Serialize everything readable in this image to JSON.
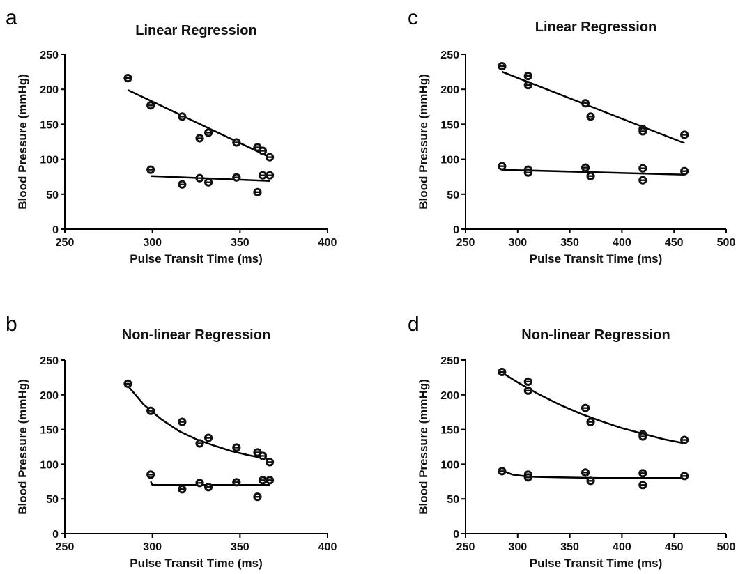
{
  "chart_data": [
    {
      "panel": "a",
      "type": "scatter",
      "title": "Linear Regression",
      "xlabel": "Pulse Transit Time (ms)",
      "ylabel": "Blood Pressure (mmHg)",
      "xlim": [
        250,
        400
      ],
      "ylim": [
        0,
        250
      ],
      "xticks": [
        250,
        300,
        350,
        400
      ],
      "yticks": [
        0,
        50,
        100,
        150,
        200,
        250
      ],
      "fit_type": "linear",
      "series": [
        {
          "points": [
            [
              286,
              216
            ],
            [
              299,
              177
            ],
            [
              317,
              161
            ],
            [
              327,
              130
            ],
            [
              332,
              138
            ],
            [
              348,
              124
            ],
            [
              360,
              117
            ],
            [
              363,
              112
            ],
            [
              367,
              103
            ]
          ],
          "fit": [
            [
              286,
              199
            ],
            [
              367,
              103
            ]
          ]
        },
        {
          "points": [
            [
              299,
              85
            ],
            [
              317,
              64
            ],
            [
              327,
              73
            ],
            [
              332,
              67
            ],
            [
              348,
              74
            ],
            [
              360,
              53
            ],
            [
              363,
              77
            ],
            [
              367,
              77
            ]
          ],
          "fit": [
            [
              299,
              76
            ],
            [
              367,
              69
            ]
          ]
        }
      ]
    },
    {
      "panel": "b",
      "type": "scatter",
      "title": "Non-linear Regression",
      "xlabel": "Pulse Transit Time (ms)",
      "ylabel": "Blood Pressure (mmHg)",
      "xlim": [
        250,
        400
      ],
      "ylim": [
        0,
        250
      ],
      "xticks": [
        250,
        300,
        350,
        400
      ],
      "yticks": [
        0,
        50,
        100,
        150,
        200,
        250
      ],
      "fit_type": "curve",
      "series": [
        {
          "points": [
            [
              286,
              216
            ],
            [
              299,
              177
            ],
            [
              317,
              161
            ],
            [
              327,
              130
            ],
            [
              332,
              138
            ],
            [
              348,
              124
            ],
            [
              360,
              117
            ],
            [
              363,
              112
            ],
            [
              367,
              103
            ]
          ],
          "fit": [
            [
              286,
              213
            ],
            [
              295,
              186
            ],
            [
              305,
              165
            ],
            [
              315,
              148
            ],
            [
              325,
              136
            ],
            [
              335,
              127
            ],
            [
              345,
              119
            ],
            [
              355,
              113
            ],
            [
              367,
              107
            ]
          ]
        },
        {
          "points": [
            [
              299,
              85
            ],
            [
              317,
              64
            ],
            [
              327,
              73
            ],
            [
              332,
              67
            ],
            [
              348,
              74
            ],
            [
              360,
              53
            ],
            [
              363,
              77
            ],
            [
              367,
              77
            ]
          ],
          "fit": [
            [
              299,
              75
            ],
            [
              300,
              70
            ],
            [
              310,
              70
            ],
            [
              330,
              70
            ],
            [
              350,
              70
            ],
            [
              367,
              70
            ]
          ]
        }
      ]
    },
    {
      "panel": "c",
      "type": "scatter",
      "title": "Linear Regression",
      "xlabel": "Pulse Transit Time (ms)",
      "ylabel": "Blood Pressure (mmHg)",
      "xlim": [
        250,
        500
      ],
      "ylim": [
        0,
        250
      ],
      "xticks": [
        250,
        300,
        350,
        400,
        450,
        500
      ],
      "yticks": [
        0,
        50,
        100,
        150,
        200,
        250
      ],
      "fit_type": "linear",
      "series": [
        {
          "points": [
            [
              285,
              233
            ],
            [
              310,
              219
            ],
            [
              310,
              206
            ],
            [
              365,
              180
            ],
            [
              370,
              161
            ],
            [
              420,
              143
            ],
            [
              420,
              140
            ],
            [
              460,
              135
            ]
          ],
          "fit": [
            [
              285,
              225
            ],
            [
              460,
              123
            ]
          ]
        },
        {
          "points": [
            [
              285,
              90
            ],
            [
              310,
              85
            ],
            [
              310,
              81
            ],
            [
              365,
              88
            ],
            [
              370,
              76
            ],
            [
              420,
              87
            ],
            [
              420,
              70
            ],
            [
              460,
              83
            ]
          ],
          "fit": [
            [
              285,
              85
            ],
            [
              460,
              78
            ]
          ]
        }
      ]
    },
    {
      "panel": "d",
      "type": "scatter",
      "title": "Non-linear Regression",
      "xlabel": "Pulse Transit Time (ms)",
      "ylabel": "Blood Pressure (mmHg)",
      "xlim": [
        250,
        500
      ],
      "ylim": [
        0,
        250
      ],
      "xticks": [
        250,
        300,
        350,
        400,
        450,
        500
      ],
      "yticks": [
        0,
        50,
        100,
        150,
        200,
        250
      ],
      "fit_type": "curve",
      "series": [
        {
          "points": [
            [
              285,
              233
            ],
            [
              310,
              219
            ],
            [
              310,
              206
            ],
            [
              365,
              181
            ],
            [
              370,
              161
            ],
            [
              420,
              143
            ],
            [
              420,
              140
            ],
            [
              460,
              135
            ]
          ],
          "fit": [
            [
              285,
              232
            ],
            [
              300,
              218
            ],
            [
              320,
              201
            ],
            [
              340,
              186
            ],
            [
              360,
              173
            ],
            [
              380,
              162
            ],
            [
              400,
              152
            ],
            [
              420,
              144
            ],
            [
              440,
              136
            ],
            [
              460,
              130
            ]
          ]
        },
        {
          "points": [
            [
              285,
              90
            ],
            [
              310,
              85
            ],
            [
              310,
              81
            ],
            [
              365,
              88
            ],
            [
              370,
              76
            ],
            [
              420,
              87
            ],
            [
              420,
              70
            ],
            [
              460,
              83
            ]
          ],
          "fit": [
            [
              285,
              91
            ],
            [
              295,
              85
            ],
            [
              310,
              82
            ],
            [
              340,
              81
            ],
            [
              380,
              80
            ],
            [
              420,
              80
            ],
            [
              460,
              80
            ]
          ]
        }
      ]
    }
  ]
}
